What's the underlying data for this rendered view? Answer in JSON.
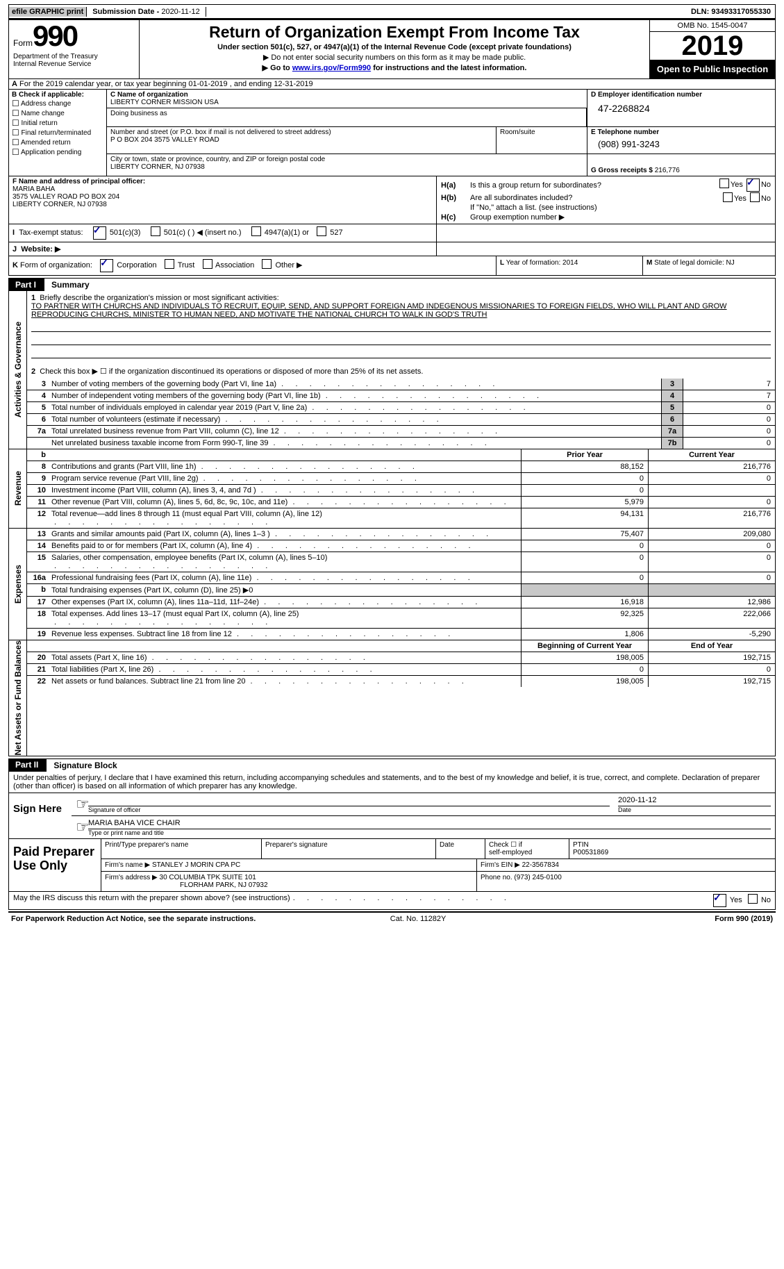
{
  "colors": {
    "grey": "#c8c8c8",
    "link": "#0000cc",
    "black": "#000000"
  },
  "topbar": {
    "efile": "efile GRAPHIC print",
    "sub_label": "Submission Date - ",
    "sub_date": "2020-11-12",
    "dln_label": "DLN: ",
    "dln": "93493317055330"
  },
  "header": {
    "form_label": "Form",
    "form_num": "990",
    "dept": "Department of the Treasury\nInternal Revenue Service",
    "title": "Return of Organization Exempt From Income Tax",
    "sub": "Under section 501(c), 527, or 4947(a)(1) of the Internal Revenue Code (except private foundations)",
    "arrow1": "▶ Do not enter social security numbers on this form as it may be made public.",
    "arrow2_pre": "▶ Go to ",
    "arrow2_link": "www.irs.gov/Form990",
    "arrow2_post": " for instructions and the latest information.",
    "omb": "OMB No. 1545-0047",
    "year": "2019",
    "open": "Open to Public Inspection"
  },
  "period": {
    "label_a": "A",
    "text": " For the 2019 calendar year, or tax year beginning 01-01-2019    , and ending 12-31-2019"
  },
  "blockB": {
    "title": "B Check if applicable:",
    "items": [
      "Address change",
      "Name change",
      "Initial return",
      "Final return/terminated",
      "Amended return",
      "Application pending"
    ]
  },
  "blockC": {
    "label": "C Name of organization",
    "name": "LIBERTY CORNER MISSION USA",
    "dba_label": "Doing business as",
    "addr_label": "Number and street (or P.O. box if mail is not delivered to street address)",
    "room_label": "Room/suite",
    "addr": "P O BOX 204 3575 VALLEY ROAD",
    "city_label": "City or town, state or province, country, and ZIP or foreign postal code",
    "city": "LIBERTY CORNER, NJ  07938"
  },
  "blockD": {
    "label": "D Employer identification number",
    "ein": "47-2268824"
  },
  "blockE": {
    "label": "E Telephone number",
    "phone": "(908) 991-3243"
  },
  "blockG": {
    "label": "G Gross receipts $",
    "val": " 216,776"
  },
  "blockF": {
    "label": "F Name and address of principal officer:",
    "name": "MARIA BAHA",
    "addr1": "3575 VALLEY ROAD PO BOX 204",
    "addr2": "LIBERTY CORNER, NJ  07938"
  },
  "blockH": {
    "a_label": "H(a)",
    "a_text": "Is this a group return for subordinates?",
    "a_yes": "Yes",
    "a_no": "No",
    "b_label": "H(b)",
    "b_text": "Are all subordinates included?",
    "b_yes": "Yes",
    "b_no": "No",
    "b_sub": "If \"No,\" attach a list. (see instructions)",
    "c_label": "H(c)",
    "c_text": "Group exemption number ▶"
  },
  "blockI": {
    "label": "I",
    "text": "Tax-exempt status:",
    "opt1": "501(c)(3)",
    "opt2": "501(c) (  ) ◀ (insert no.)",
    "opt3": "4947(a)(1) or",
    "opt4": "527"
  },
  "blockJ": {
    "label": "J",
    "text": "Website: ▶"
  },
  "blockK": {
    "label": "K",
    "text": "Form of organization:",
    "opts": [
      "Corporation",
      "Trust",
      "Association",
      "Other ▶"
    ]
  },
  "blockL": {
    "label": "L",
    "text": " Year of formation: 2014"
  },
  "blockM": {
    "label": "M",
    "text": " State of legal domicile: NJ"
  },
  "part1": {
    "tab": "Part I",
    "title": "Summary"
  },
  "summary": {
    "s1": {
      "tab": "Activities & Governance",
      "l1_n": "1",
      "l1": "Briefly describe the organization's mission or most significant activities:",
      "mission": "TO PARTNER WITH CHURCHS AND INDIVIDUALS TO RECRUIT, EQUIP, SEND, AND SUPPORT FOREIGN AMD INDEGENOUS MISSIONARIES TO FOREIGN FIELDS, WHO WILL PLANT AND GROW REPRODUCING CHURCHS, MINISTER TO HUMAN NEED, AND MOTIVATE THE NATIONAL CHURCH TO WALK IN GOD'S TRUTH",
      "l2_n": "2",
      "l2": "Check this box ▶ ☐  if the organization discontinued its operations or disposed of more than 25% of its net assets.",
      "rows": [
        {
          "n": "3",
          "d": "Number of voting members of the governing body (Part VI, line 1a)",
          "b": "3",
          "v": "7"
        },
        {
          "n": "4",
          "d": "Number of independent voting members of the governing body (Part VI, line 1b)",
          "b": "4",
          "v": "7"
        },
        {
          "n": "5",
          "d": "Total number of individuals employed in calendar year 2019 (Part V, line 2a)",
          "b": "5",
          "v": "0"
        },
        {
          "n": "6",
          "d": "Total number of volunteers (estimate if necessary)",
          "b": "6",
          "v": "0"
        },
        {
          "n": "7a",
          "d": "Total unrelated business revenue from Part VIII, column (C), line 12",
          "b": "7a",
          "v": "0"
        },
        {
          "n": "",
          "d": "Net unrelated business taxable income from Form 990-T, line 39",
          "b": "7b",
          "v": "0"
        }
      ],
      "l7b_n": "b"
    },
    "rev": {
      "tab": "Revenue",
      "hdr_py": "Prior Year",
      "hdr_cy": "Current Year",
      "rows": [
        {
          "n": "8",
          "d": "Contributions and grants (Part VIII, line 1h)",
          "py": "88,152",
          "cy": "216,776"
        },
        {
          "n": "9",
          "d": "Program service revenue (Part VIII, line 2g)",
          "py": "0",
          "cy": "0"
        },
        {
          "n": "10",
          "d": "Investment income (Part VIII, column (A), lines 3, 4, and 7d )",
          "py": "0",
          "cy": ""
        },
        {
          "n": "11",
          "d": "Other revenue (Part VIII, column (A), lines 5, 6d, 8c, 9c, 10c, and 11e)",
          "py": "5,979",
          "cy": "0"
        },
        {
          "n": "12",
          "d": "Total revenue—add lines 8 through 11 (must equal Part VIII, column (A), line 12)",
          "py": "94,131",
          "cy": "216,776"
        }
      ]
    },
    "exp": {
      "tab": "Expenses",
      "rows": [
        {
          "n": "13",
          "d": "Grants and similar amounts paid (Part IX, column (A), lines 1–3 )",
          "py": "75,407",
          "cy": "209,080"
        },
        {
          "n": "14",
          "d": "Benefits paid to or for members (Part IX, column (A), line 4)",
          "py": "0",
          "cy": "0"
        },
        {
          "n": "15",
          "d": "Salaries, other compensation, employee benefits (Part IX, column (A), lines 5–10)",
          "py": "0",
          "cy": "0"
        },
        {
          "n": "16a",
          "d": "Professional fundraising fees (Part IX, column (A), line 11e)",
          "py": "0",
          "cy": "0"
        },
        {
          "n": "b",
          "d": "Total fundraising expenses (Part IX, column (D), line 25) ▶0",
          "py": "",
          "cy": "",
          "shade": true
        },
        {
          "n": "17",
          "d": "Other expenses (Part IX, column (A), lines 11a–11d, 11f–24e)",
          "py": "16,918",
          "cy": "12,986"
        },
        {
          "n": "18",
          "d": "Total expenses. Add lines 13–17 (must equal Part IX, column (A), line 25)",
          "py": "92,325",
          "cy": "222,066"
        },
        {
          "n": "19",
          "d": "Revenue less expenses. Subtract line 18 from line 12",
          "py": "1,806",
          "cy": "-5,290"
        }
      ]
    },
    "na": {
      "tab": "Net Assets or Fund Balances",
      "hdr_py": "Beginning of Current Year",
      "hdr_cy": "End of Year",
      "rows": [
        {
          "n": "20",
          "d": "Total assets (Part X, line 16)",
          "py": "198,005",
          "cy": "192,715"
        },
        {
          "n": "21",
          "d": "Total liabilities (Part X, line 26)",
          "py": "0",
          "cy": "0"
        },
        {
          "n": "22",
          "d": "Net assets or fund balances. Subtract line 21 from line 20",
          "py": "198,005",
          "cy": "192,715"
        }
      ]
    }
  },
  "part2": {
    "tab": "Part II",
    "title": "Signature Block"
  },
  "sig": {
    "decl": "Under penalties of perjury, I declare that I have examined this return, including accompanying schedules and statements, and to the best of my knowledge and belief, it is true, correct, and complete. Declaration of preparer (other than officer) is based on all information of which preparer has any knowledge.",
    "sign_here": "Sign Here",
    "sig_officer": "Signature of officer",
    "date_lab": "Date",
    "date": "2020-11-12",
    "name": "MARIA BAHA  VICE CHAIR",
    "name_sub": "Type or print name and title"
  },
  "prep": {
    "left": "Paid Preparer Use Only",
    "h1": "Print/Type preparer's name",
    "h2": "Preparer's signature",
    "h3": "Date",
    "h4_a": "Check ☐  if",
    "h4_b": "self-employed",
    "h5": "PTIN",
    "ptin": "P00531869",
    "firm_lab": "Firm's name    ▶",
    "firm": "STANLEY J MORIN CPA PC",
    "ein_lab": "Firm's EIN ▶",
    "ein": " 22-3567834",
    "addr_lab": "Firm's address ▶",
    "addr1": "30 COLUMBIA TPK SUITE 101",
    "addr2": "FLORHAM PARK, NJ  07932",
    "phone_lab": "Phone no. ",
    "phone": "(973) 245-0100"
  },
  "may": {
    "text": "May the IRS discuss this return with the preparer shown above? (see instructions)",
    "yes": "Yes",
    "no": "No"
  },
  "footer": {
    "left": "For Paperwork Reduction Act Notice, see the separate instructions.",
    "mid": "Cat. No. 11282Y",
    "right": "Form 990 (2019)"
  }
}
